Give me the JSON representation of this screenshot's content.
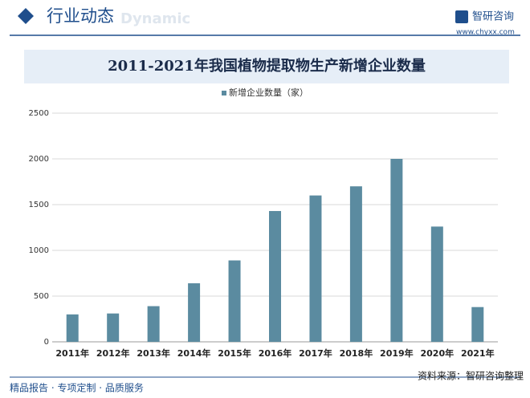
{
  "header": {
    "title": "行业动态",
    "watermark": "Dynamic"
  },
  "logo": {
    "name": "智研咨询",
    "url": "www.chyxx.com"
  },
  "chart_data": {
    "type": "bar",
    "title": "2011-2021年我国植物提取物生产新增企业数量",
    "categories": [
      "2011年",
      "2012年",
      "2013年",
      "2014年",
      "2015年",
      "2016年",
      "2017年",
      "2018年",
      "2019年",
      "2020年",
      "2021年"
    ],
    "series": [
      {
        "name": "新增企业数量（家）",
        "color": "#5b8ba0",
        "values": [
          300,
          310,
          390,
          640,
          890,
          1430,
          1600,
          1700,
          2000,
          1260,
          380
        ]
      }
    ],
    "ylim": [
      0,
      2500
    ],
    "yticks": [
      0,
      500,
      1000,
      1500,
      2000,
      2500
    ],
    "grid": true,
    "legend": "top"
  },
  "footer": {
    "left": "精品报告 · 专项定制 · 品质服务",
    "source": "资料来源：智研咨询整理"
  }
}
